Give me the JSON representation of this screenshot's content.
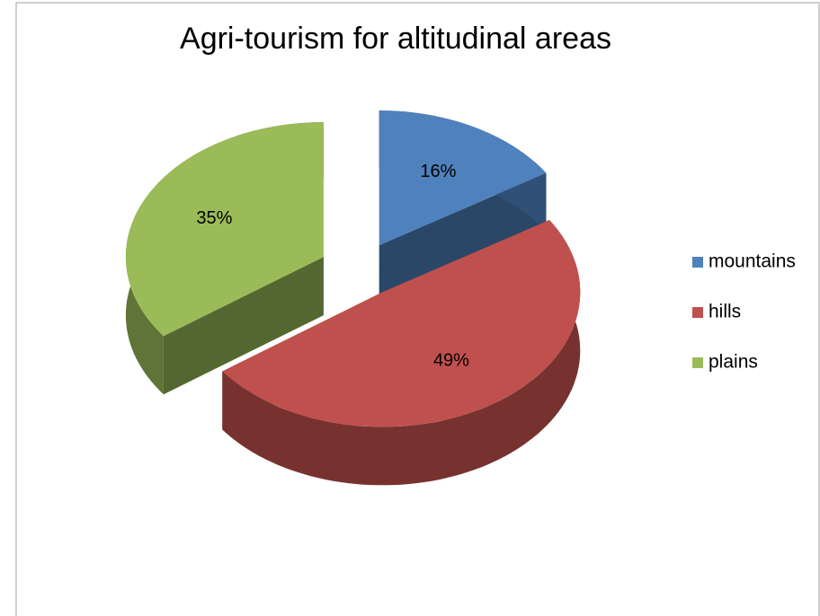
{
  "chart_data": {
    "type": "pie",
    "title": "Agri-tourism for altitudinal areas",
    "categories": [
      "mountains",
      "hills",
      "plains"
    ],
    "values": [
      16,
      49,
      35
    ],
    "value_labels": [
      "16%",
      "49%",
      "35%"
    ],
    "colors": [
      "#4f81bd",
      "#c0504d",
      "#9bbb59"
    ],
    "legend": "right"
  }
}
